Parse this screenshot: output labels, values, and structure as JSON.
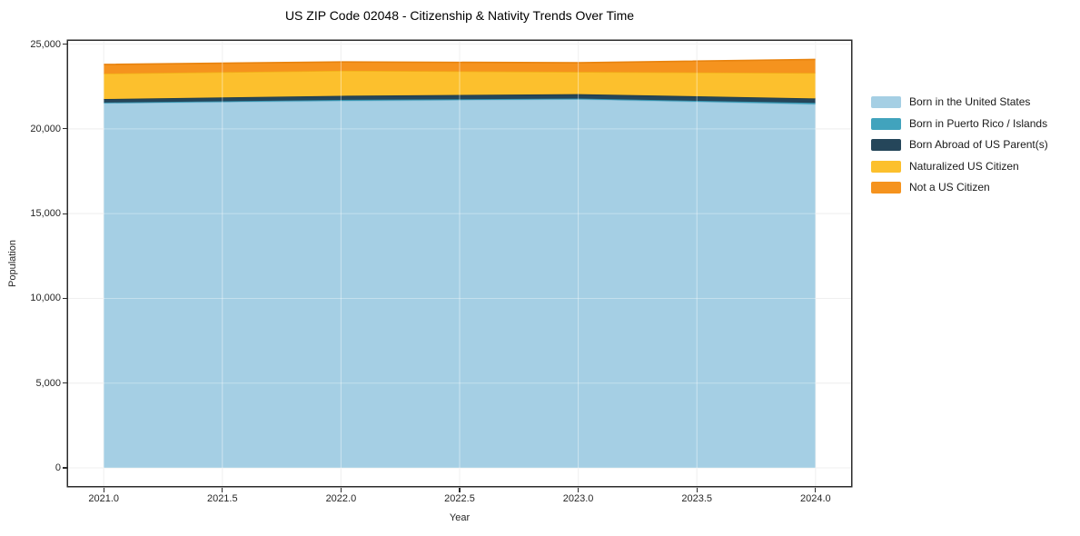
{
  "chart_data": {
    "type": "area",
    "stacked": true,
    "title": "US ZIP Code 02048 - Citizenship & Nativity Trends Over Time",
    "xlabel": "Year",
    "ylabel": "Population",
    "x": [
      2021,
      2022,
      2023,
      2024
    ],
    "series": [
      {
        "name": "Born in the United States",
        "color": "#a5cfe4",
        "edge": "#8fc1da",
        "values": [
          21520,
          21650,
          21750,
          21450
        ]
      },
      {
        "name": "Born in Puerto Rico / Islands",
        "color": "#41a3bd",
        "edge": "#3494af",
        "values": [
          30,
          60,
          35,
          80
        ]
      },
      {
        "name": "Born Abroad of US Parent(s)",
        "color": "#25465a",
        "edge": "#1c3849",
        "values": [
          210,
          240,
          265,
          265
        ]
      },
      {
        "name": "Naturalized US Citizen",
        "color": "#fcc02d",
        "edge": "#f2b118",
        "values": [
          1500,
          1480,
          1310,
          1500
        ]
      },
      {
        "name": "Not a US Citizen",
        "color": "#f5931e",
        "edge": "#e8830e",
        "values": [
          540,
          520,
          540,
          800
        ]
      }
    ],
    "xlim": [
      2020.85,
      2024.15
    ],
    "ylim": [
      -1070,
      25190
    ],
    "xticks": {
      "values": [
        2021.0,
        2021.5,
        2022.0,
        2022.5,
        2023.0,
        2023.5,
        2024.0
      ],
      "labels": [
        "2021.0",
        "2021.5",
        "2022.0",
        "2022.5",
        "2023.0",
        "2023.5",
        "2024.0"
      ]
    },
    "yticks": {
      "values": [
        0,
        5000,
        10000,
        15000,
        20000,
        25000
      ],
      "labels": [
        "0",
        "5,000",
        "10,000",
        "15,000",
        "20,000",
        "25,000"
      ]
    },
    "grid": true,
    "legend_position": "right-outside",
    "colors": {
      "background": "#ffffff",
      "spine": "#2b2b2b",
      "gridline": "#e7e7e7",
      "text": "#262626"
    }
  }
}
